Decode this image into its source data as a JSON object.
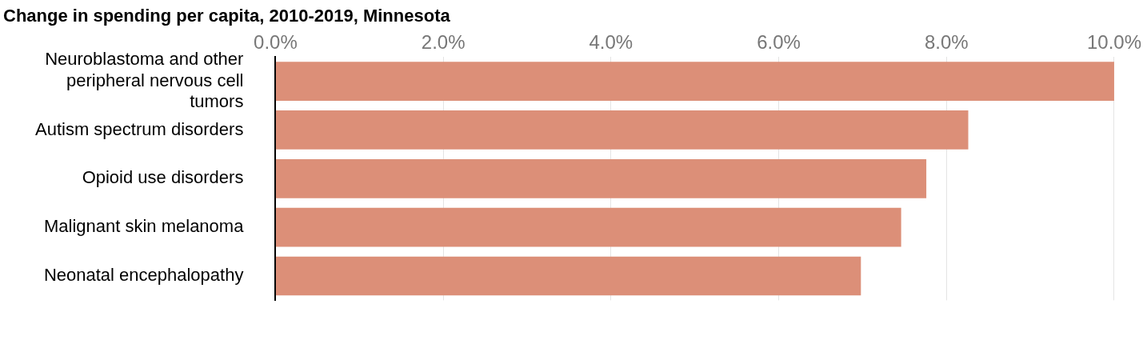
{
  "chart_data": {
    "type": "bar",
    "orientation": "horizontal",
    "title": "Change in spending per capita, 2010-2019, Minnesota",
    "categories": [
      "Neuroblastoma and other peripheral nervous cell tumors",
      "Autism spectrum disorders",
      "Opioid use disorders",
      "Malignant skin melanoma",
      "Neonatal encephalopathy"
    ],
    "values": [
      10.0,
      8.26,
      7.76,
      7.46,
      6.98
    ],
    "color": "#dc8f78",
    "xlim": [
      0,
      10
    ],
    "xticks": [
      {
        "value": 0,
        "label": "0.0%"
      },
      {
        "value": 2,
        "label": "2.0%"
      },
      {
        "value": 4,
        "label": "4.0%"
      },
      {
        "value": 6,
        "label": "6.0%"
      },
      {
        "value": 8,
        "label": "8.0%"
      },
      {
        "value": 10,
        "label": "10.0%"
      }
    ],
    "grid": "x",
    "legend": false
  }
}
